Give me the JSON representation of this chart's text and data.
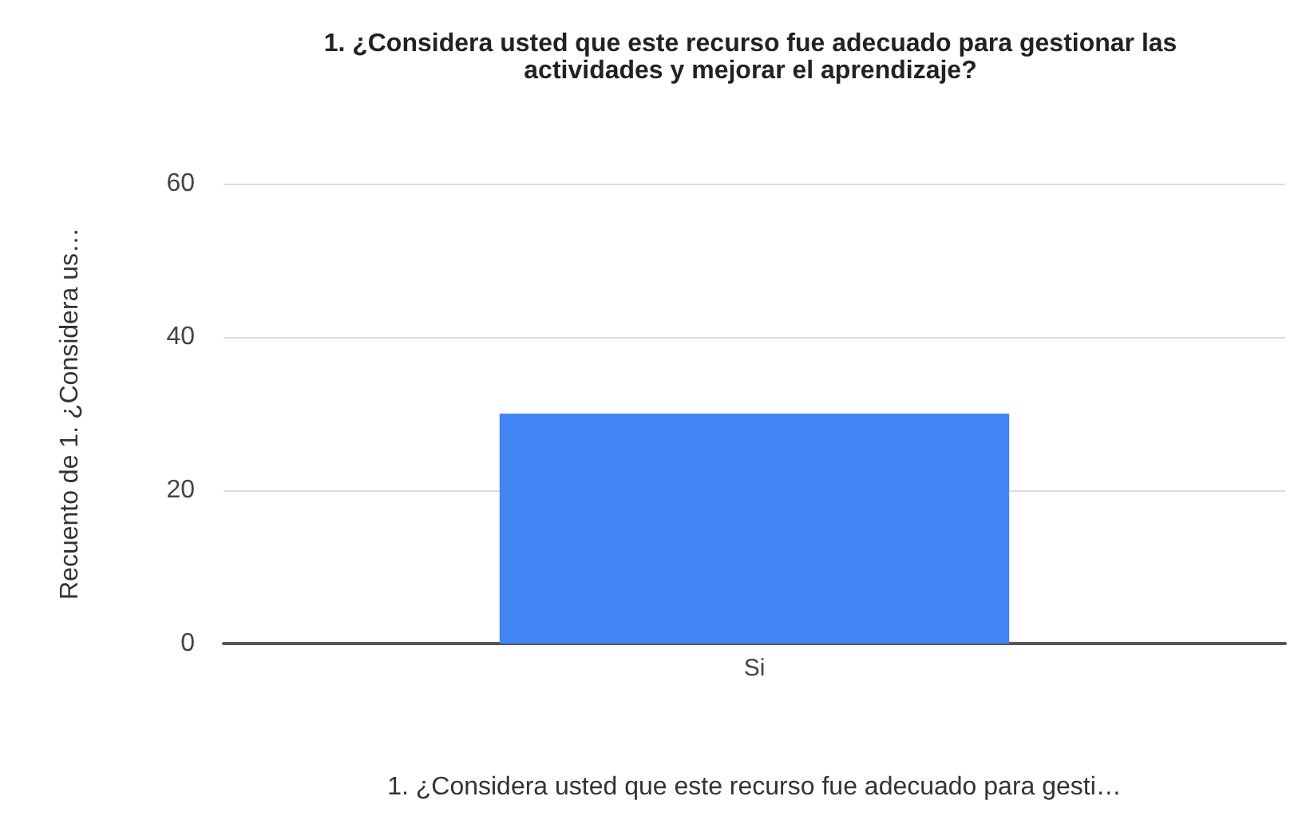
{
  "chart_data": {
    "type": "bar",
    "title": "1. ¿Considera usted que este recurso fue adecuado para gestionar las\nactividades y mejorar el aprendizaje?",
    "xlabel": "1. ¿Considera usted que este recurso fue adecuado para gesti…",
    "ylabel": "Recuento de 1. ¿Considera us…",
    "categories": [
      "Si"
    ],
    "values": [
      30
    ],
    "color": "#4285f4",
    "ylim": [
      0,
      60
    ],
    "yticks": [
      0,
      20,
      40,
      60
    ],
    "grid": "y"
  }
}
